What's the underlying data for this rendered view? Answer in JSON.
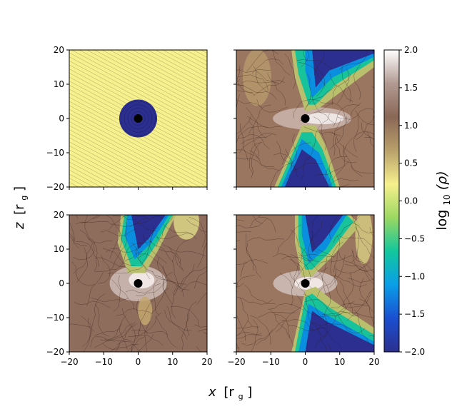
{
  "chart_data": {
    "type": "heatmap",
    "layout": "2x2 panels with shared axes and one vertical colorbar",
    "xlabel": "x [r_g]",
    "ylabel": "z [r_g]",
    "xlim": [
      -20,
      20
    ],
    "ylim": [
      -20,
      20
    ],
    "x_ticks": [
      -20,
      -10,
      0,
      10,
      20
    ],
    "y_ticks": [
      -20,
      -10,
      0,
      10,
      20
    ],
    "colorbar": {
      "label": "log10(ρ)",
      "range": [
        -2.0,
        2.0
      ],
      "ticks": [
        "2.0",
        "1.5",
        "1.0",
        "0.5",
        "0.0",
        "−0.5",
        "−1.0",
        "−1.5",
        "−2.0"
      ],
      "colormap": "terrain-like: dark blue → blue → green → yellow → brown → white",
      "stops": [
        "#2c2f8f",
        "#1a4fd0",
        "#0a9ee8",
        "#12c79c",
        "#9bd862",
        "#f6f08d",
        "#b9a06b",
        "#8a6756",
        "#b29a92",
        "#ffffff"
      ]
    },
    "black_hole": {
      "x": 0,
      "z": 0,
      "color": "#000000"
    },
    "panels": [
      {
        "id": "top-left",
        "description": "initial state: uniform yellow background, dark blue disk of radius ~5.5 centered at origin",
        "disk_radius": 5.5,
        "background_log_rho": 0.0,
        "disk_log_rho": -2.0
      },
      {
        "id": "top-right",
        "description": "bipolar low-density funnels (blue) separated by dense brown/white equatorial region"
      },
      {
        "id": "bottom-left",
        "description": "single upward funnel, dense turbulent brown flow elsewhere"
      },
      {
        "id": "bottom-right",
        "description": "bipolar funnels, upper funnel tilted right, lower funnel tilted right"
      }
    ]
  },
  "labels": {
    "xlabel_main": "x",
    "xlabel_unit": "[r",
    "xlabel_sub": "g",
    "xlabel_close": "]",
    "ylabel_main": "z",
    "ylabel_unit": "[r",
    "ylabel_sub": "g",
    "ylabel_close": "]",
    "cb_prefix": "log",
    "cb_sub": "10",
    "cb_rest": "(ρ)"
  }
}
